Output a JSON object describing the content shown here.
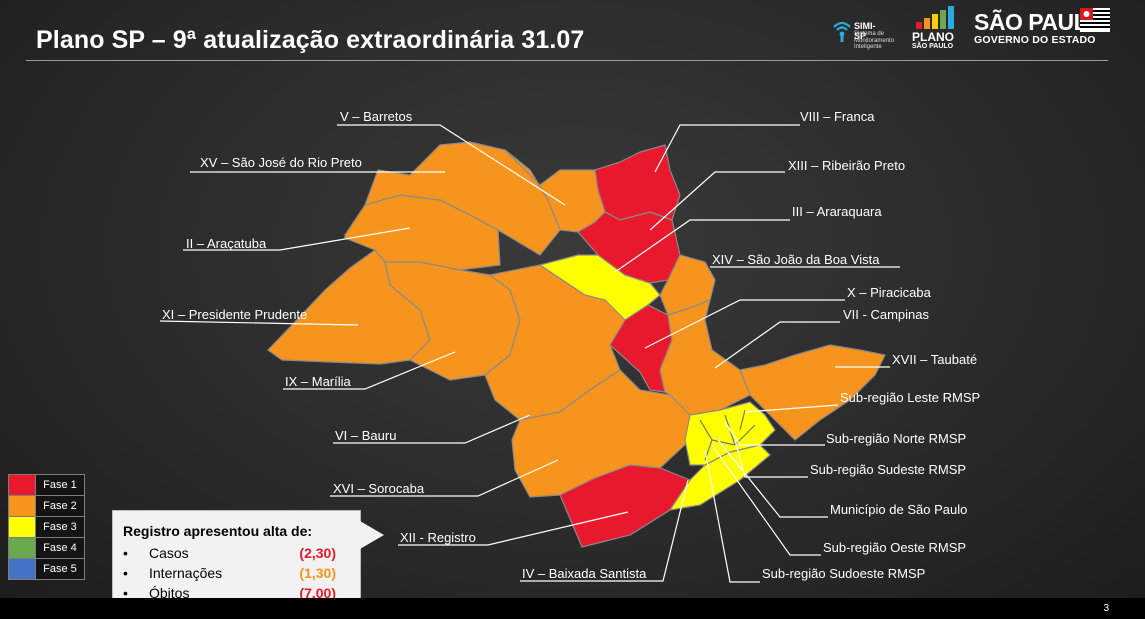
{
  "header": {
    "title": "Plano SP – 9ª atualização extraordinária 31.07",
    "simi_name": "SIMI-SP",
    "simi_desc": "Sistema de Monitoramento Inteligente",
    "plano_line1": "PLANO",
    "plano_line2": "SÃO PAULO",
    "sp_title": "SÃO PAULO",
    "sp_sub": "GOVERNO DO ESTADO"
  },
  "colors": {
    "fase1": "#e8192c",
    "fase2": "#f7941d",
    "fase3": "#ffff00",
    "fase4": "#6aa84f",
    "fase5": "#4472c4"
  },
  "legend": [
    {
      "label": "Fase 1",
      "color": "#e8192c"
    },
    {
      "label": "Fase 2",
      "color": "#f7941d"
    },
    {
      "label": "Fase 3",
      "color": "#ffff00"
    },
    {
      "label": "Fase 4",
      "color": "#6aa84f"
    },
    {
      "label": "Fase 5",
      "color": "#4472c4"
    }
  ],
  "regions": [
    {
      "label": "V – Barretos",
      "fase": 2
    },
    {
      "label": "XV – São José do Rio Preto",
      "fase": 2
    },
    {
      "label": "II – Araçatuba",
      "fase": 2
    },
    {
      "label": "XI – Presidente Prudente",
      "fase": 2
    },
    {
      "label": "IX – Marília",
      "fase": 2
    },
    {
      "label": "VI – Bauru",
      "fase": 2
    },
    {
      "label": "XVI – Sorocaba",
      "fase": 2
    },
    {
      "label": "XII - Registro",
      "fase": 1
    },
    {
      "label": "IV – Baixada Santista",
      "fase": 3
    },
    {
      "label": "VIII – Franca",
      "fase": 1
    },
    {
      "label": "XIII – Ribeirão Preto",
      "fase": 1
    },
    {
      "label": "III – Araraquara",
      "fase": 3
    },
    {
      "label": "XIV – São João da Boa Vista",
      "fase": 2
    },
    {
      "label": "X – Piracicaba",
      "fase": 1
    },
    {
      "label": "VII - Campinas",
      "fase": 2
    },
    {
      "label": "XVII – Taubaté",
      "fase": 2
    },
    {
      "label": "Sub-região Leste RMSP",
      "fase": 3
    },
    {
      "label": "Sub-região Norte RMSP",
      "fase": 3
    },
    {
      "label": "Sub-região Sudeste RMSP",
      "fase": 3
    },
    {
      "label": "Município de São Paulo",
      "fase": 3
    },
    {
      "label": "Sub-região Oeste RMSP",
      "fase": 3
    },
    {
      "label": "Sub-região Sudoeste RMSP",
      "fase": 3
    }
  ],
  "info": {
    "title": "Registro apresentou alta de:",
    "items": [
      {
        "name": "Casos",
        "value": "(2,30)",
        "color": "#e8192c"
      },
      {
        "name": "Internações",
        "value": "(1,30)",
        "color": "#f7941d"
      },
      {
        "name": "Óbitos",
        "value": "(7,00)",
        "color": "#e8192c"
      }
    ]
  },
  "page_number": "3"
}
